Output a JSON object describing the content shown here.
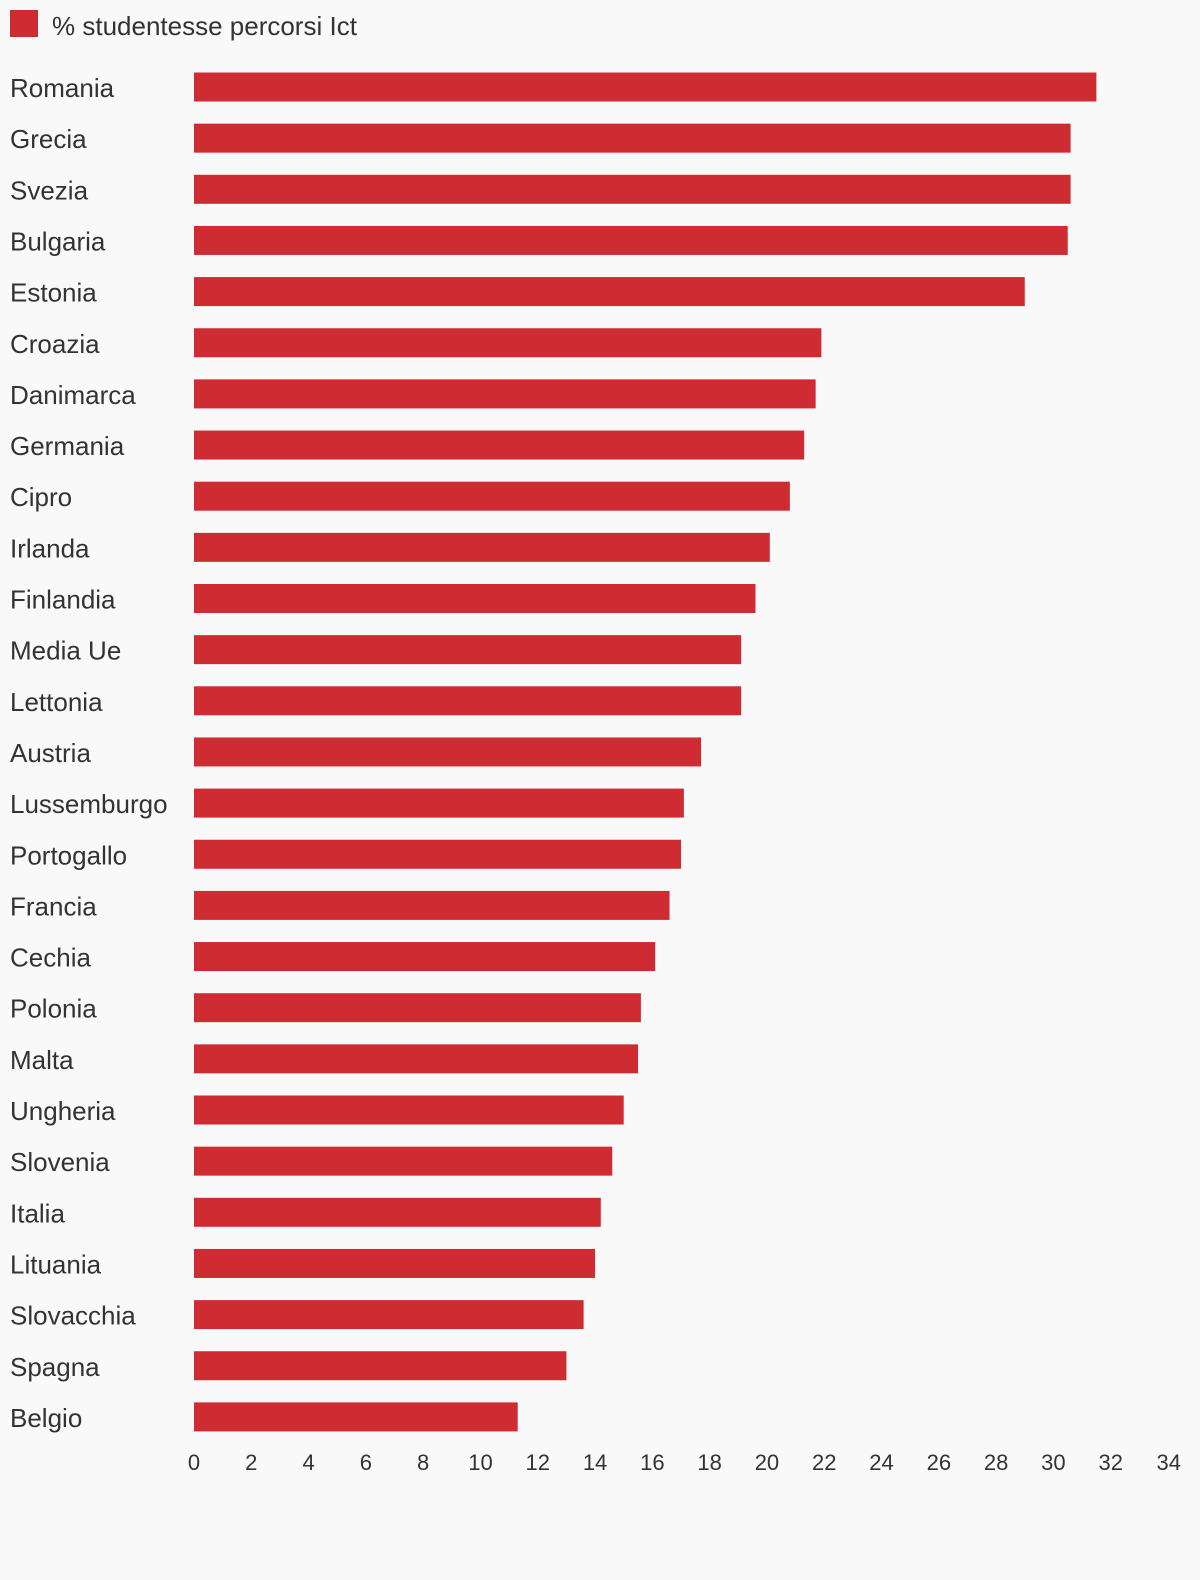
{
  "chart_data": {
    "type": "bar",
    "orientation": "horizontal",
    "legend": {
      "position": "top-left",
      "label": "% studentesse percorsi Ict"
    },
    "color": "#cf2b32",
    "categories": [
      "Romania",
      "Grecia",
      "Svezia",
      "Bulgaria",
      "Estonia",
      "Croazia",
      "Danimarca",
      "Germania",
      "Cipro",
      "Irlanda",
      "Finlandia",
      "Media Ue",
      "Lettonia",
      "Austria",
      "Lussemburgo",
      "Portogallo",
      "Francia",
      "Cechia",
      "Polonia",
      "Malta",
      "Ungheria",
      "Slovenia",
      "Italia",
      "Lituania",
      "Slovacchia",
      "Spagna",
      "Belgio"
    ],
    "series": [
      {
        "name": "% studentesse percorsi Ict",
        "values": [
          31.5,
          30.6,
          30.6,
          30.5,
          29.0,
          21.9,
          21.7,
          21.3,
          20.8,
          20.1,
          19.6,
          19.1,
          19.1,
          17.7,
          17.1,
          17.0,
          16.6,
          16.1,
          15.6,
          15.5,
          15.0,
          14.6,
          14.2,
          14.0,
          13.6,
          13.0,
          11.3
        ]
      }
    ],
    "xlim": [
      0,
      34
    ],
    "xticks": [
      "0",
      "2",
      "4",
      "6",
      "8",
      "10",
      "12",
      "14",
      "16",
      "18",
      "20",
      "22",
      "24",
      "26",
      "28",
      "30",
      "32",
      "34"
    ],
    "grid": false
  }
}
